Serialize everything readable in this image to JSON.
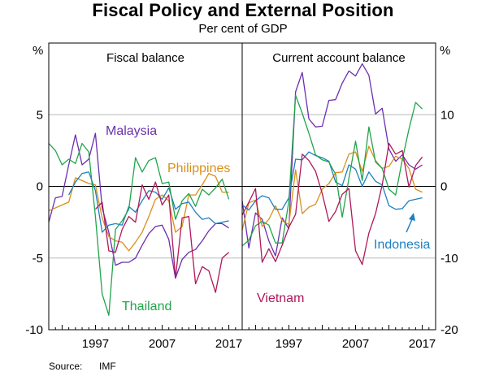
{
  "title": "Fiscal Policy and External Position",
  "subtitle": "Per cent of GDP",
  "source_label": "Source:",
  "source_value": "IMF",
  "colors": {
    "Malaysia": "#6a2fae",
    "Philippines": "#d9901a",
    "Indonesia": "#1f7fc0",
    "Thailand": "#20a54a",
    "Vietnam": "#b0185a"
  },
  "chart_data": [
    {
      "type": "line",
      "panel_title": "Fiscal balance",
      "ylabel": "%",
      "ylim": [
        -10,
        10
      ],
      "yticks": [
        -10,
        -5,
        0,
        5
      ],
      "xlim": [
        1990,
        2019
      ],
      "xticks": [
        1997,
        2007,
        2017
      ],
      "grid": true,
      "series": [
        {
          "name": "Malaysia",
          "x": [
            1990,
            1991,
            1992,
            1993,
            1994,
            1995,
            1996,
            1997,
            1998,
            1999,
            2000,
            2001,
            2002,
            2003,
            2004,
            2005,
            2006,
            2007,
            2008,
            2009,
            2010,
            2011,
            2012,
            2013,
            2014,
            2015,
            2016,
            2017
          ],
          "y": [
            -2.5,
            -0.8,
            -0.7,
            1.5,
            3.6,
            1.5,
            1.9,
            3.7,
            -1.5,
            -3.2,
            -5.5,
            -5.3,
            -5.3,
            -5.0,
            -4.1,
            -3.3,
            -2.8,
            -2.7,
            -3.7,
            -6.4,
            -5.1,
            -4.6,
            -4.4,
            -3.8,
            -3.1,
            -2.6,
            -2.6,
            -2.9
          ]
        },
        {
          "name": "Philippines",
          "x": [
            1990,
            1991,
            1992,
            1993,
            1994,
            1995,
            1996,
            1997,
            1998,
            1999,
            2000,
            2001,
            2002,
            2003,
            2004,
            2005,
            2006,
            2007,
            2008,
            2009,
            2010,
            2011,
            2012,
            2013,
            2014,
            2015,
            2016,
            2017
          ],
          "y": [
            -1.7,
            -1.5,
            -1.3,
            -1.1,
            0.6,
            0.4,
            0.2,
            0.1,
            -2.2,
            -3.5,
            -3.8,
            -3.9,
            -4.5,
            -3.9,
            -3.2,
            -2.1,
            -0.9,
            -0.6,
            -1.0,
            -3.2,
            -2.8,
            -0.6,
            -0.6,
            0.1,
            0.9,
            0.7,
            -0.4,
            -0.4
          ]
        },
        {
          "name": "Indonesia",
          "x": [
            1993,
            1994,
            1995,
            1996,
            1997,
            1998,
            1999,
            2000,
            2001,
            2002,
            2003,
            2004,
            2005,
            2006,
            2007,
            2008,
            2009,
            2010,
            2011,
            2012,
            2013,
            2014,
            2015,
            2016,
            2017
          ],
          "y": [
            -0.6,
            0.3,
            0.9,
            1.0,
            -0.3,
            -3.2,
            -2.7,
            -2.6,
            -2.7,
            -1.4,
            -1.8,
            -1.0,
            -0.3,
            -0.4,
            -0.9,
            -0.1,
            -1.6,
            -1.2,
            -1.1,
            -1.8,
            -2.3,
            -2.2,
            -2.6,
            -2.5,
            -2.4
          ]
        },
        {
          "name": "Thailand",
          "x": [
            1990,
            1991,
            1992,
            1993,
            1994,
            1995,
            1996,
            1997,
            1998,
            1999,
            2000,
            2001,
            2002,
            2003,
            2004,
            2005,
            2006,
            2007,
            2008,
            2009,
            2010,
            2011,
            2012,
            2013,
            2014,
            2015,
            2016,
            2017
          ],
          "y": [
            3.0,
            2.5,
            1.5,
            1.9,
            1.6,
            3.0,
            2.4,
            -2.1,
            -7.5,
            -9.0,
            -3.0,
            -2.4,
            -1.6,
            2.0,
            1.0,
            1.8,
            2.0,
            0.2,
            0.3,
            -2.3,
            -1.0,
            -0.5,
            -1.4,
            -0.2,
            -0.6,
            -0.1,
            0.5,
            -0.9
          ]
        },
        {
          "name": "Vietnam",
          "x": [
            1997,
            1998,
            1999,
            2000,
            2001,
            2002,
            2003,
            2004,
            2005,
            2006,
            2007,
            2008,
            2009,
            2010,
            2011,
            2012,
            2013,
            2014,
            2015,
            2016,
            2017
          ],
          "y": [
            -1.6,
            -1.1,
            -4.5,
            -4.6,
            -3.0,
            -2.1,
            -2.5,
            0.1,
            -0.9,
            0.3,
            -1.3,
            -0.6,
            -6.4,
            -2.2,
            -2.1,
            -6.8,
            -5.6,
            -5.9,
            -7.4,
            -5.0,
            -4.6
          ]
        }
      ],
      "annotations": [
        {
          "text": "Malaysia",
          "series": "Malaysia"
        },
        {
          "text": "Philippines",
          "series": "Philippines"
        },
        {
          "text": "Thailand",
          "series": "Thailand"
        }
      ]
    },
    {
      "type": "line",
      "panel_title": "Current account balance",
      "ylabel": "%",
      "ylim": [
        -20,
        20
      ],
      "yticks": [
        -20,
        -10,
        0,
        10
      ],
      "xlim": [
        1990,
        2019
      ],
      "xticks": [
        1997,
        2007,
        2017
      ],
      "grid": true,
      "series": [
        {
          "name": "Malaysia",
          "x": [
            1990,
            1991,
            1992,
            1993,
            1994,
            1995,
            1996,
            1997,
            1998,
            1999,
            2000,
            2001,
            2002,
            2003,
            2004,
            2005,
            2006,
            2007,
            2008,
            2009,
            2010,
            2011,
            2012,
            2013,
            2014,
            2015,
            2016,
            2017
          ],
          "y": [
            -2.0,
            -8.6,
            -3.7,
            -4.6,
            -7.6,
            -9.7,
            -4.4,
            -5.9,
            13.2,
            15.9,
            9.4,
            8.3,
            8.4,
            12.0,
            12.1,
            14.4,
            16.1,
            15.4,
            17.1,
            15.5,
            10.1,
            10.9,
            5.2,
            3.5,
            4.4,
            3.0,
            2.4,
            3.0
          ]
        },
        {
          "name": "Philippines",
          "x": [
            1990,
            1991,
            1992,
            1993,
            1994,
            1995,
            1996,
            1997,
            1998,
            1999,
            2000,
            2001,
            2002,
            2003,
            2004,
            2005,
            2006,
            2007,
            2008,
            2009,
            2010,
            2011,
            2012,
            2013,
            2014,
            2015,
            2016,
            2017
          ],
          "y": [
            -6.1,
            -2.3,
            -1.9,
            -5.6,
            -4.6,
            -2.7,
            -4.8,
            -5.3,
            2.3,
            -3.8,
            -2.9,
            -2.5,
            -0.4,
            0.4,
            1.9,
            2.0,
            4.5,
            4.8,
            2.1,
            5.6,
            3.6,
            2.5,
            2.8,
            4.2,
            3.8,
            2.5,
            -0.4,
            -0.8
          ]
        },
        {
          "name": "Indonesia",
          "x": [
            1990,
            1991,
            1992,
            1993,
            1994,
            1995,
            1996,
            1997,
            1998,
            1999,
            2000,
            2001,
            2002,
            2003,
            2004,
            2005,
            2006,
            2007,
            2008,
            2009,
            2010,
            2011,
            2012,
            2013,
            2014,
            2015,
            2016,
            2017
          ],
          "y": [
            -2.6,
            -3.3,
            -2.0,
            -1.3,
            -1.6,
            -3.2,
            -3.2,
            -1.6,
            3.8,
            3.7,
            4.8,
            4.3,
            4.0,
            3.5,
            0.6,
            0.1,
            3.0,
            2.4,
            0.0,
            2.0,
            0.7,
            0.2,
            -2.7,
            -3.2,
            -3.1,
            -2.0,
            -1.8,
            -1.6
          ]
        },
        {
          "name": "Thailand",
          "x": [
            1990,
            1991,
            1992,
            1993,
            1994,
            1995,
            1996,
            1997,
            1998,
            1999,
            2000,
            2001,
            2002,
            2003,
            2004,
            2005,
            2006,
            2007,
            2008,
            2009,
            2010,
            2011,
            2012,
            2013,
            2014,
            2015,
            2016,
            2017
          ],
          "y": [
            -8.3,
            -7.5,
            -5.5,
            -4.9,
            -5.4,
            -7.9,
            -7.9,
            -2.1,
            12.7,
            10.2,
            7.4,
            4.4,
            3.7,
            3.4,
            1.7,
            -4.3,
            1.1,
            6.3,
            0.8,
            8.3,
            3.4,
            2.5,
            -0.4,
            -1.2,
            3.7,
            8.0,
            11.7,
            10.8
          ]
        },
        {
          "name": "Vietnam",
          "x": [
            1990,
            1991,
            1992,
            1993,
            1994,
            1995,
            1996,
            1997,
            1998,
            1999,
            2000,
            2001,
            2002,
            2003,
            2004,
            2005,
            2006,
            2007,
            2008,
            2009,
            2010,
            2011,
            2012,
            2013,
            2014,
            2015,
            2016,
            2017
          ],
          "y": [
            -4.0,
            -2.2,
            -0.3,
            -10.6,
            -8.7,
            -10.5,
            -8.2,
            -5.7,
            -3.9,
            4.5,
            3.6,
            2.1,
            -1.0,
            -4.9,
            -3.5,
            -1.1,
            -0.3,
            -9.0,
            -10.9,
            -6.5,
            -3.8,
            0.2,
            6.0,
            4.5,
            5.0,
            -0.1,
            2.9,
            4.1
          ]
        }
      ],
      "annotations": [
        {
          "text": "Indonesia",
          "series": "Indonesia"
        },
        {
          "text": "Vietnam",
          "series": "Vietnam"
        }
      ]
    }
  ]
}
